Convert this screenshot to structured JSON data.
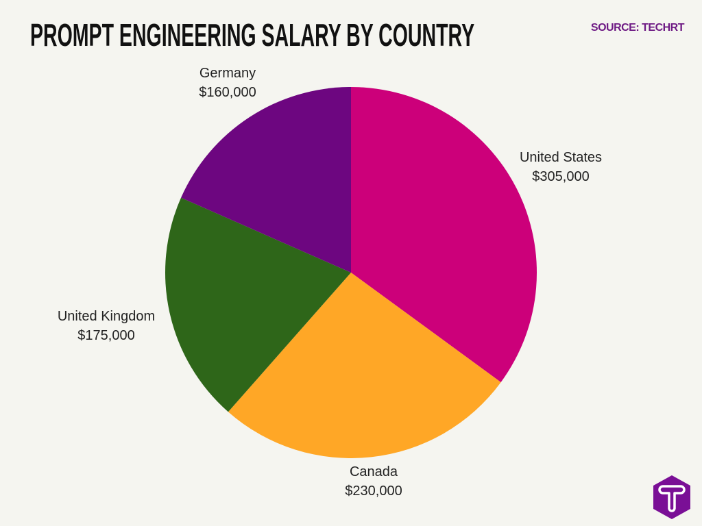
{
  "source": "SOURCE: TECHRT",
  "logo_text": "T",
  "chart_data": {
    "type": "pie",
    "title": "PROMPT ENGINEERING SALARY BY COUNTRY",
    "start": "top",
    "direction": "clockwise",
    "slices": [
      {
        "label": "United States",
        "value": 305000,
        "value_label": "$305,000",
        "color": "#cc007a"
      },
      {
        "label": "Canada",
        "value": 230000,
        "value_label": "$230,000",
        "color": "#ffa726"
      },
      {
        "label": "United Kingdom",
        "value": 175000,
        "value_label": "$175,000",
        "color": "#2e6619"
      },
      {
        "label": "Germany",
        "value": 160000,
        "value_label": "$160,000",
        "color": "#6d0680"
      }
    ]
  }
}
